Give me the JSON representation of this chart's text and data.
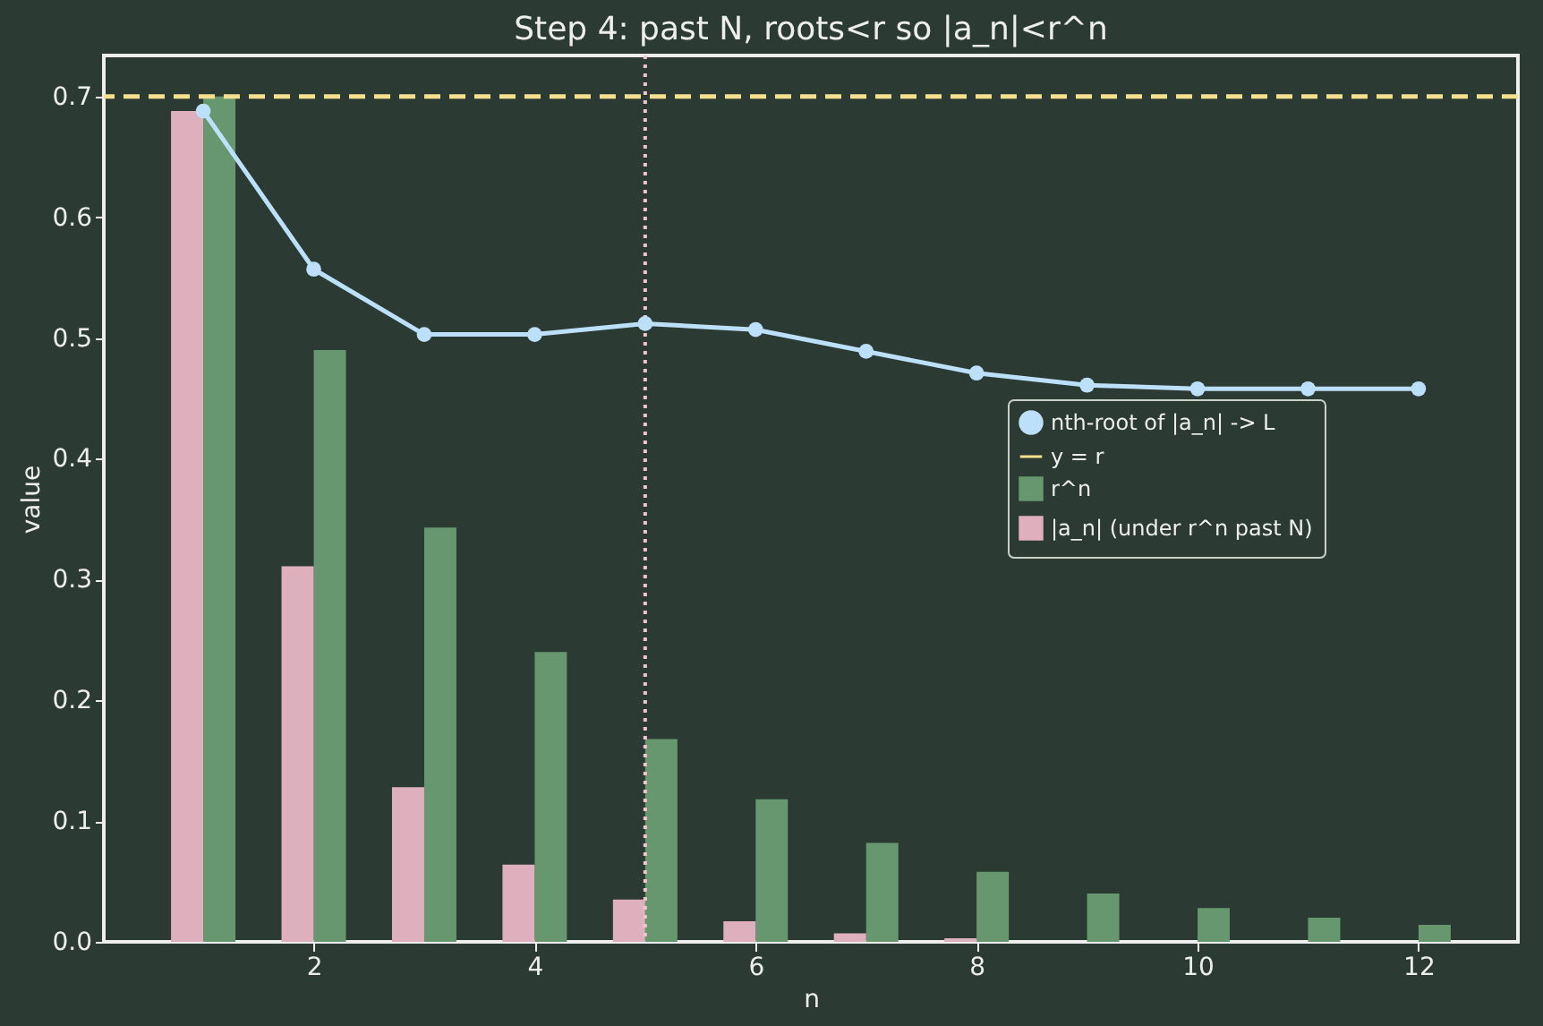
{
  "chart_data": {
    "type": "bar",
    "title": "Step 4: past N, roots<r so |a_n|<r^n",
    "xlabel": "n",
    "ylabel": "value",
    "x": [
      1,
      2,
      3,
      4,
      5,
      6,
      7,
      8,
      9,
      10,
      11,
      12
    ],
    "series": [
      {
        "name": "nth-root of |a_n| -> L",
        "type": "line",
        "color": "#bde0fa",
        "marker": "circle",
        "line_style": "solid",
        "values": [
          0.688,
          0.557,
          0.503,
          0.503,
          0.512,
          0.507,
          0.489,
          0.471,
          0.461,
          0.458,
          0.458,
          0.458
        ]
      },
      {
        "name": "r^n",
        "color": "#66976f",
        "values": [
          0.7,
          0.49,
          0.343,
          0.24,
          0.168,
          0.118,
          0.082,
          0.058,
          0.04,
          0.028,
          0.02,
          0.014
        ]
      },
      {
        "name": "|a_n| (under r^n past N)",
        "color": "#deafbc",
        "values": [
          0.688,
          0.311,
          0.128,
          0.064,
          0.035,
          0.017,
          0.007,
          0.003,
          0,
          0,
          0,
          0
        ]
      }
    ],
    "ref_lines": [
      {
        "axis": "y",
        "value": 0.7,
        "label": "y = r",
        "color": "#f5e08f",
        "line_style": "dashed"
      },
      {
        "axis": "x",
        "value": 5,
        "color": "#f2c4cf",
        "line_style": "dotted"
      }
    ],
    "xlim": [
      0.1,
      12.9
    ],
    "xticks": [
      2,
      4,
      6,
      8,
      10,
      12
    ],
    "ylim": [
      0,
      0.734
    ],
    "yticks": [
      {
        "value": 0,
        "label": "0.0"
      },
      0.1,
      0.2,
      0.3,
      0.4,
      0.5,
      0.6,
      0.7
    ],
    "grid": false,
    "legend": "center right"
  }
}
